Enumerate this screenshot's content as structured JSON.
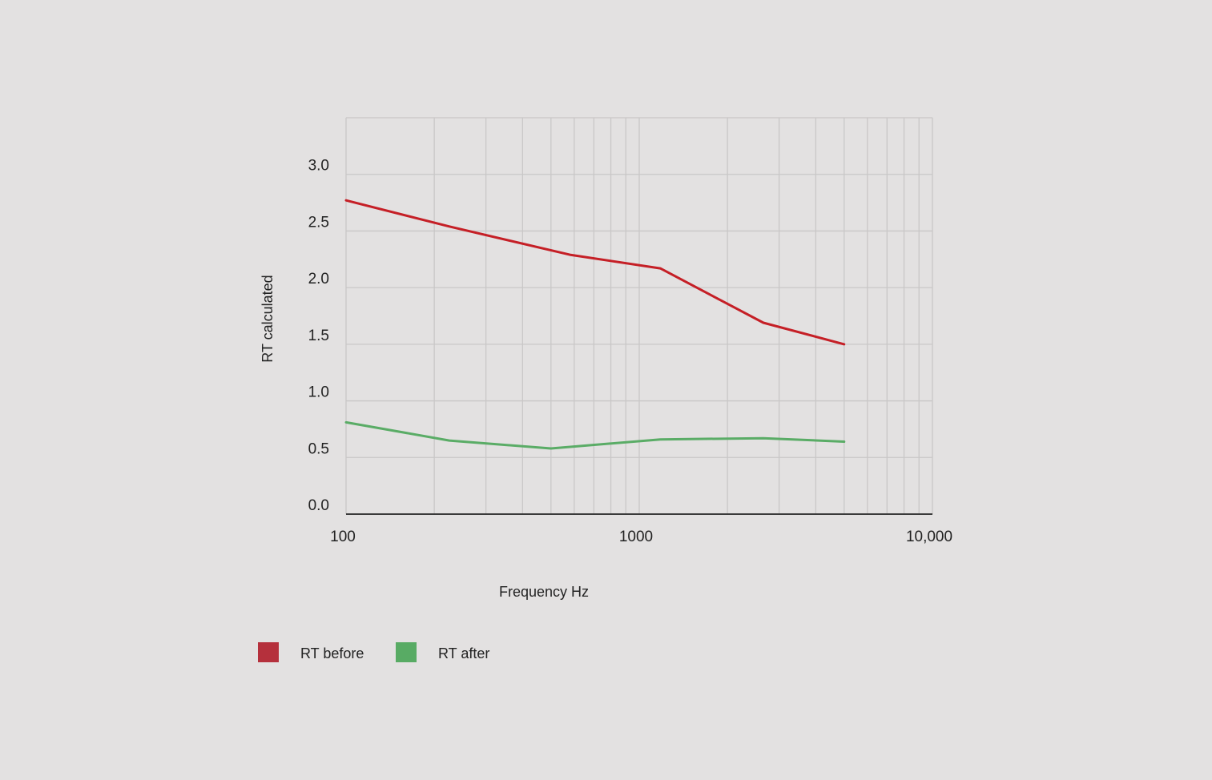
{
  "chart_data": {
    "type": "line",
    "xscale": "log",
    "xlim": [
      100,
      10000
    ],
    "ylim": [
      0,
      3.5
    ],
    "grid": true,
    "xlabel": "Frequency Hz",
    "ylabel": "RT calculated",
    "xticks": [
      {
        "value": 100,
        "label": "100"
      },
      {
        "value": 1000,
        "label": "1000"
      },
      {
        "value": 10000,
        "label": "10,000"
      }
    ],
    "yticks": [
      {
        "value": 0,
        "label": "0.0"
      },
      {
        "value": 0.5,
        "label": "0.5"
      },
      {
        "value": 1.0,
        "label": "1.0"
      },
      {
        "value": 1.5,
        "label": "1.5"
      },
      {
        "value": 2.0,
        "label": "2.0"
      },
      {
        "value": 2.5,
        "label": "2.5"
      },
      {
        "value": 3.0,
        "label": "3.0"
      }
    ],
    "legend_position": "bottom-left",
    "series": [
      {
        "name": "RT before",
        "line_color": "#c51f26",
        "legend_color": "#b5303c",
        "x": [
          100,
          225,
          580,
          1180,
          2650,
          5000
        ],
        "y": [
          2.77,
          2.54,
          2.29,
          2.17,
          1.69,
          1.5
        ]
      },
      {
        "name": "RT after",
        "line_color": "#5aac66",
        "legend_color": "#58ab64",
        "x": [
          100,
          225,
          500,
          1180,
          2650,
          5000
        ],
        "y": [
          0.81,
          0.65,
          0.58,
          0.66,
          0.67,
          0.64
        ]
      }
    ]
  }
}
